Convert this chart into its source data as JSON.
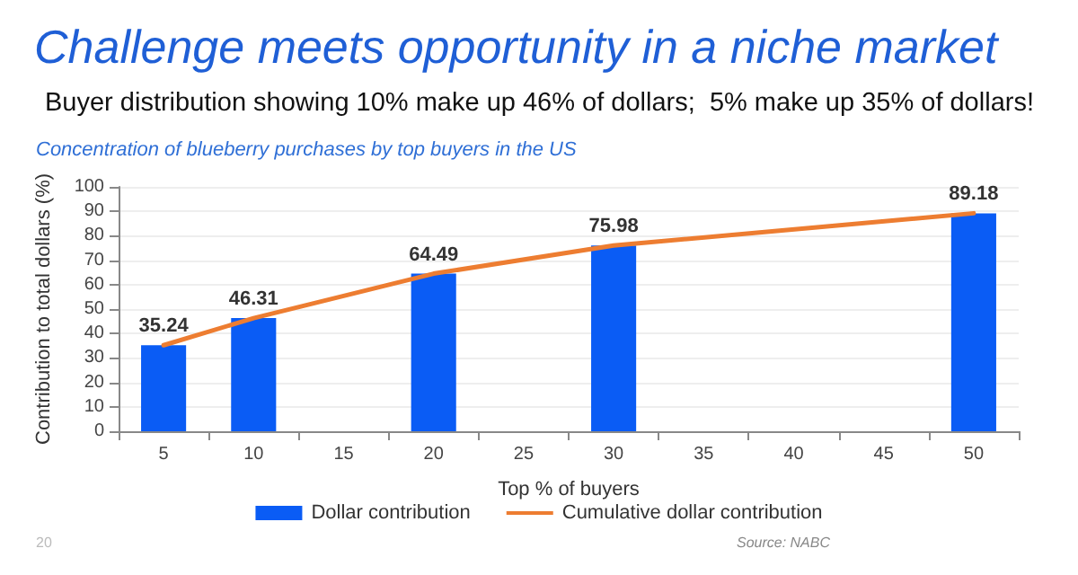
{
  "chart_data": {
    "type": "bar",
    "title": "Challenge meets opportunity in a niche market",
    "subtitle": "Buyer distribution showing 10% make up 46% of dollars;  5% make up 35% of dollars!",
    "annotations": [
      "Concentration of blueberry purchases by top buyers in the US",
      "Source: NABC",
      "20"
    ],
    "xlabel": "Top % of buyers",
    "ylabel": "Contribution to total dollars (%)",
    "categories": [
      "5",
      "10",
      "15",
      "20",
      "25",
      "30",
      "35",
      "40",
      "45",
      "50"
    ],
    "series": [
      {
        "name": "Dollar contribution",
        "color": "#0a5cf5",
        "values": [
          35.24,
          46.31,
          null,
          64.49,
          null,
          75.98,
          null,
          null,
          null,
          89.18
        ],
        "value_labels": [
          "35.24",
          "46.31",
          null,
          "64.49",
          null,
          "75.98",
          null,
          null,
          null,
          "89.18"
        ]
      },
      {
        "name": "Cumulative dollar contribution",
        "type": "line",
        "color": "#ed7d31",
        "values": [
          35.2,
          46.3,
          null,
          64.5,
          null,
          76.0,
          null,
          null,
          null,
          89.2
        ],
        "marker": "none"
      }
    ],
    "ylim": [
      0,
      100
    ],
    "yticks": [
      0,
      10,
      20,
      30,
      40,
      50,
      60,
      70,
      80,
      90,
      100
    ],
    "grid": "y",
    "legend": "bottom"
  }
}
